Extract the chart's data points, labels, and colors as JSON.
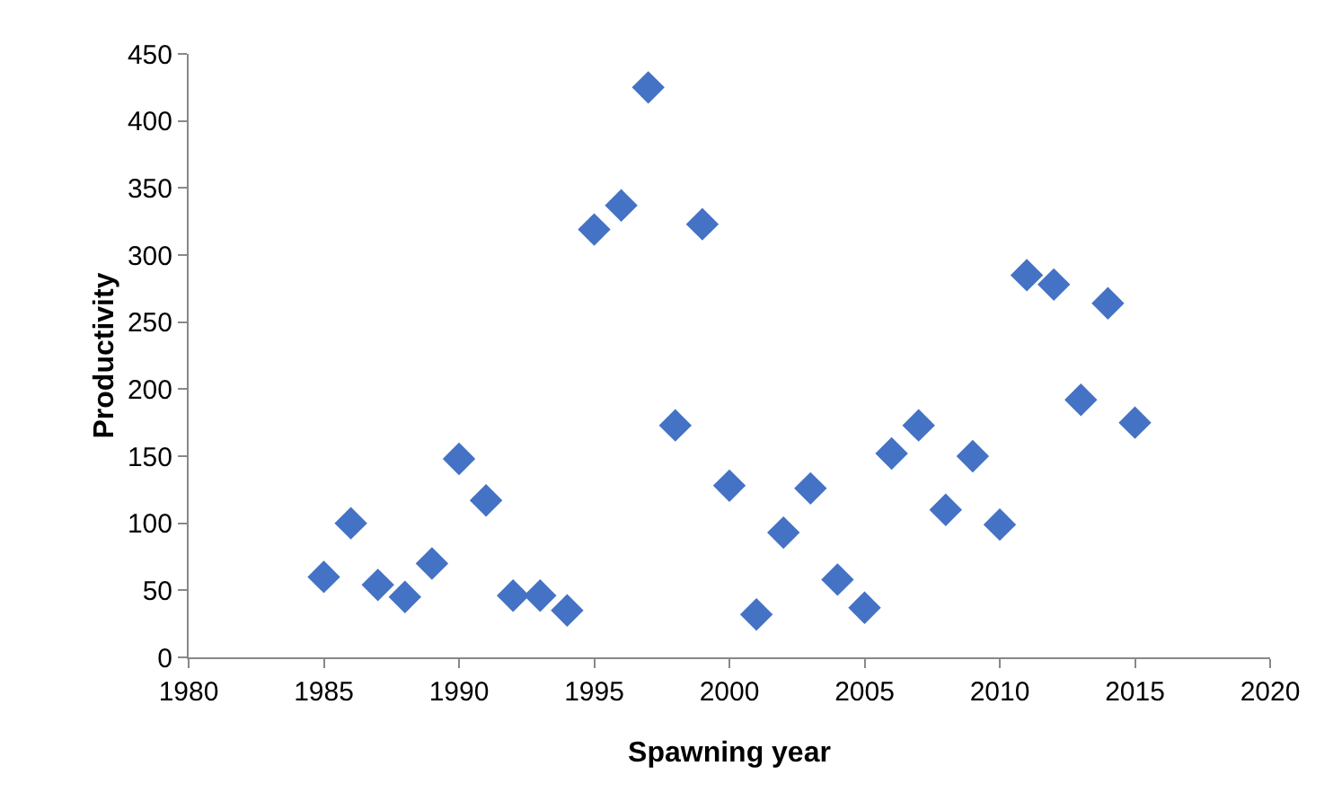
{
  "chart_data": {
    "type": "scatter",
    "xlabel": "Spawning year",
    "ylabel": "Productivity",
    "x": [
      1985,
      1986,
      1987,
      1988,
      1989,
      1990,
      1991,
      1992,
      1993,
      1994,
      1995,
      1996,
      1997,
      1998,
      1999,
      2000,
      2001,
      2002,
      2003,
      2004,
      2005,
      2006,
      2007,
      2008,
      2009,
      2010,
      2011,
      2012,
      2013,
      2014,
      2015
    ],
    "values": [
      60,
      100,
      54,
      45,
      70,
      148,
      117,
      46,
      46,
      35,
      319,
      337,
      425,
      173,
      323,
      128,
      32,
      93,
      126,
      58,
      37,
      152,
      173,
      110,
      150,
      99,
      285,
      278,
      192,
      264,
      175
    ],
    "color": "#4472c4",
    "marker": "diamond",
    "grid": false,
    "xlim": [
      1980,
      2020
    ],
    "xticks": [
      1980,
      1985,
      1990,
      1995,
      2000,
      2005,
      2010,
      2015,
      2020
    ],
    "ylim": [
      0,
      450
    ],
    "yticks": [
      0,
      50,
      100,
      150,
      200,
      250,
      300,
      350,
      400,
      450
    ]
  }
}
